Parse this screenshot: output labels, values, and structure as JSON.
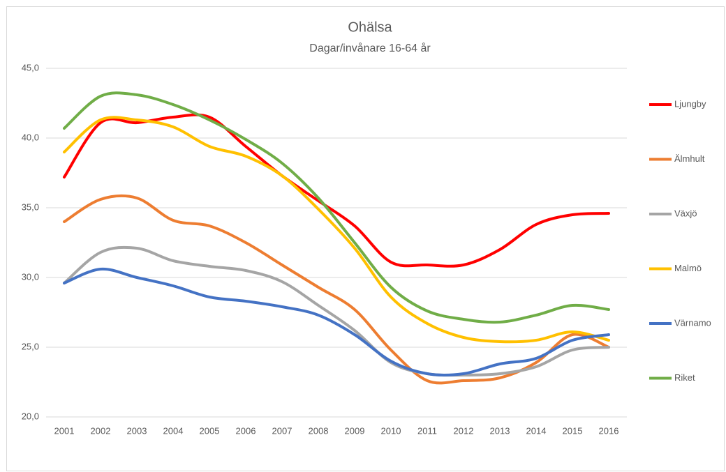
{
  "chart_data": {
    "type": "line",
    "title": "Ohälsa",
    "subtitle": "Dagar/invånare 16-64 år",
    "categories": [
      "2001",
      "2002",
      "2003",
      "2004",
      "2005",
      "2006",
      "2007",
      "2008",
      "2009",
      "2010",
      "2011",
      "2012",
      "2013",
      "2014",
      "2015",
      "2016"
    ],
    "series": [
      {
        "name": "Ljungby",
        "color": "#ff0000",
        "values": [
          37.2,
          41.1,
          41.1,
          41.5,
          41.5,
          39.4,
          37.3,
          35.5,
          33.7,
          31.1,
          30.9,
          30.9,
          32.0,
          33.8,
          34.5,
          34.6
        ]
      },
      {
        "name": "Älmhult",
        "color": "#ed7d31",
        "values": [
          34.0,
          35.6,
          35.7,
          34.1,
          33.7,
          32.5,
          30.9,
          29.3,
          27.7,
          24.8,
          22.6,
          22.6,
          22.8,
          23.9,
          25.9,
          25.0
        ]
      },
      {
        "name": "Växjö",
        "color": "#a5a5a5",
        "values": [
          29.6,
          31.8,
          32.1,
          31.2,
          30.8,
          30.5,
          29.7,
          28.0,
          26.2,
          23.9,
          23.1,
          23.0,
          23.1,
          23.6,
          24.8,
          25.0
        ]
      },
      {
        "name": "Malmö",
        "color": "#ffc000",
        "values": [
          39.0,
          41.3,
          41.3,
          40.8,
          39.4,
          38.7,
          37.3,
          34.9,
          32.1,
          28.6,
          26.7,
          25.7,
          25.4,
          25.5,
          26.1,
          25.5
        ]
      },
      {
        "name": "Värnamo",
        "color": "#4472c4",
        "values": [
          29.6,
          30.6,
          30.0,
          29.4,
          28.6,
          28.3,
          27.9,
          27.3,
          25.9,
          24.0,
          23.1,
          23.1,
          23.8,
          24.2,
          25.5,
          25.9
        ]
      },
      {
        "name": "Riket",
        "color": "#70ad47",
        "values": [
          40.7,
          43.0,
          43.1,
          42.4,
          41.3,
          39.9,
          38.2,
          35.7,
          32.5,
          29.3,
          27.6,
          27.0,
          26.8,
          27.3,
          28.0,
          27.7
        ]
      }
    ],
    "ylim": [
      20,
      45
    ],
    "yticks": [
      {
        "value": 20,
        "label": "20,0"
      },
      {
        "value": 25,
        "label": "25,0"
      },
      {
        "value": 30,
        "label": "30,0"
      },
      {
        "value": 35,
        "label": "35,0"
      },
      {
        "value": 40,
        "label": "40,0"
      },
      {
        "value": 45,
        "label": "45,0"
      }
    ],
    "grid": true,
    "legend": "right"
  }
}
